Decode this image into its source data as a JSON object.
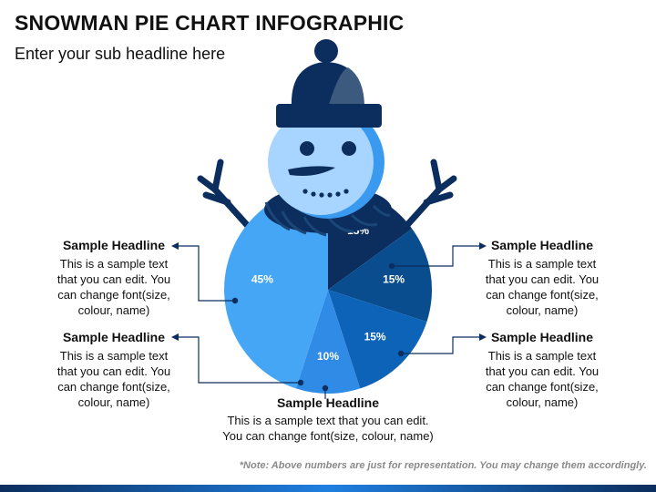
{
  "title": "SNOWMAN PIE CHART INFOGRAPHIC",
  "subtitle": "Enter your sub headline here",
  "note": "*Note: Above numbers are just for representation. You may change them accordingly.",
  "colors": {
    "navy": "#0b2e5e",
    "dark_blue": "#0a3f7d",
    "medium_blue": "#0c63b8",
    "bright_blue": "#2f8be6",
    "light_blue": "#45a6f5",
    "pale_blue": "#a7d5ff",
    "face_blue": "#3a9af0",
    "hat_gray": "#3c5a7e"
  },
  "callouts": {
    "top_left": {
      "headline": "Sample Headline",
      "lines": [
        "This is a sample text",
        "that you can edit. You",
        "can change font(size,",
        "colour, name)"
      ]
    },
    "mid_left": {
      "headline": "Sample Headline",
      "lines": [
        "This is a sample text",
        "that you can edit. You",
        "can change font(size,",
        "colour, name)"
      ]
    },
    "top_right": {
      "headline": "Sample Headline",
      "lines": [
        "This is a sample text",
        "that you can edit. You",
        "can change font(size,",
        "colour, name)"
      ]
    },
    "mid_right": {
      "headline": "Sample Headline",
      "lines": [
        "This is a sample text",
        "that you can edit. You",
        "can change font(size,",
        "colour, name)"
      ]
    },
    "bottom": {
      "headline": "Sample Headline",
      "lines": [
        "This is a sample text that you can edit.",
        "You can change font(size, colour, name)"
      ]
    }
  },
  "chart_data": {
    "type": "pie",
    "categories": [
      "",
      "",
      "",
      "",
      ""
    ],
    "values": [
      15,
      15,
      15,
      10,
      45
    ],
    "labels": [
      "15%",
      "15%",
      "15%",
      "10%",
      "45%"
    ],
    "colors": [
      "#0b2e5e",
      "#0a4d8f",
      "#0c63b8",
      "#2f8be6",
      "#45a6f5"
    ],
    "start_direction": "top, clockwise"
  }
}
